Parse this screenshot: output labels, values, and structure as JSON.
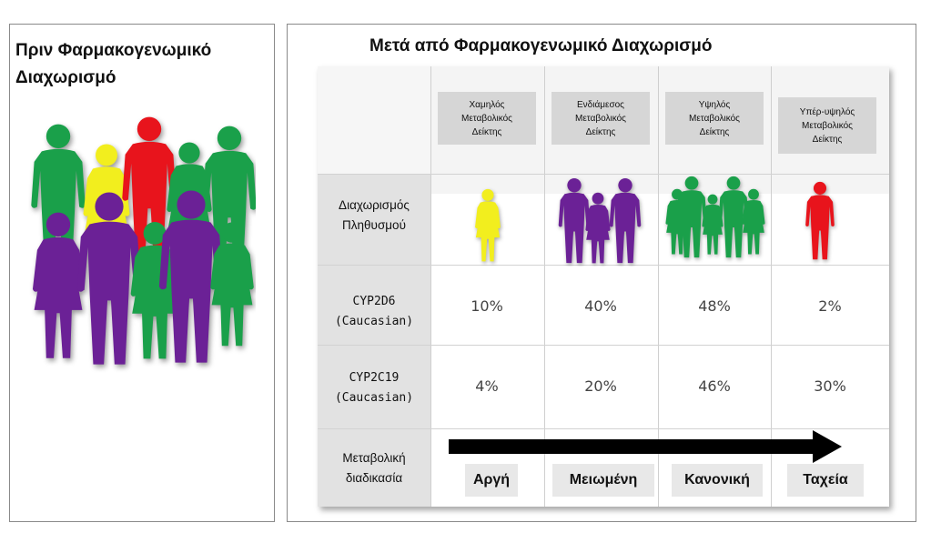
{
  "left": {
    "title_line1": "Πριν Φαρμακογενωμικό",
    "title_line2": "Διαχωρισμό"
  },
  "right": {
    "title": "Μετά από Φαρμακογενωμικό Διαχωρισμό",
    "columns": [
      {
        "line1": "Χαμηλός",
        "line2": "Μεταβολικός",
        "line3": "Δείκτης"
      },
      {
        "line1": "Ενδιάμεσος",
        "line2": "Μεταβολικός",
        "line3": "Δείκτης"
      },
      {
        "line1": "Υψηλός",
        "line2": "Μεταβολικός",
        "line3": "Δείκτης"
      },
      {
        "line1": "Υπέρ-υψηλός",
        "line2": "Μεταβολικός",
        "line3": "Δείκτης"
      }
    ],
    "rows": {
      "population": {
        "line1": "Διαχωρισμός",
        "line2": "Πληθυσμού"
      },
      "cyp2d6": {
        "line1": "CYP2D6",
        "line2": "(Caucasian)",
        "values": [
          "10%",
          "40%",
          "48%",
          "2%"
        ]
      },
      "cyp2c19": {
        "line1": "CYP2C19",
        "line2": "(Caucasian)",
        "values": [
          "4%",
          "20%",
          "46%",
          "30%"
        ]
      },
      "metabolism": {
        "line1": "Μεταβολική",
        "line2": "διαδικασία"
      }
    },
    "speeds": [
      "Αργή",
      "Μειωμένη",
      "Κανονική",
      "Ταχεία"
    ]
  },
  "colors": {
    "green": "#1aa04a",
    "yellow": "#f2ee1e",
    "red": "#e8141c",
    "purple": "#6b2196"
  }
}
